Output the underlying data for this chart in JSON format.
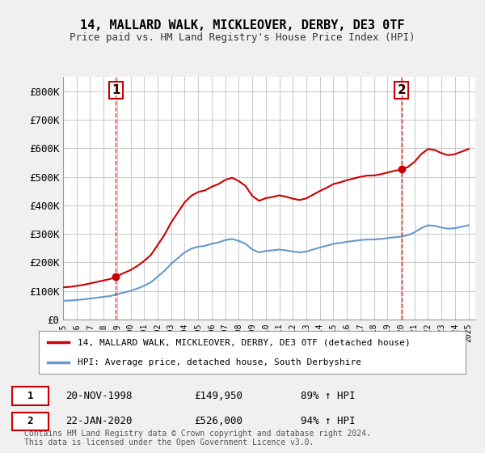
{
  "title": "14, MALLARD WALK, MICKLEOVER, DERBY, DE3 0TF",
  "subtitle": "Price paid vs. HM Land Registry's House Price Index (HPI)",
  "ylim": [
    0,
    850000
  ],
  "yticks": [
    0,
    100000,
    200000,
    300000,
    400000,
    500000,
    600000,
    700000,
    800000
  ],
  "ytick_labels": [
    "£0",
    "£100K",
    "£200K",
    "£300K",
    "£400K",
    "£500K",
    "£600K",
    "£700K",
    "£800K"
  ],
  "bg_color": "#f0f0f0",
  "plot_bg_color": "#ffffff",
  "grid_color": "#cccccc",
  "red_color": "#cc0000",
  "blue_color": "#6699cc",
  "sale1_year": 1998.9,
  "sale1_price": 149950,
  "sale1_label": "1",
  "sale2_year": 2020.05,
  "sale2_price": 526000,
  "sale2_label": "2",
  "legend_line1": "14, MALLARD WALK, MICKLEOVER, DERBY, DE3 0TF (detached house)",
  "legend_line2": "HPI: Average price, detached house, South Derbyshire",
  "table_row1": [
    "1",
    "20-NOV-1998",
    "£149,950",
    "89% ↑ HPI"
  ],
  "table_row2": [
    "2",
    "22-JAN-2020",
    "£526,000",
    "94% ↑ HPI"
  ],
  "footnote": "Contains HM Land Registry data © Crown copyright and database right 2024.\nThis data is licensed under the Open Government Licence v3.0.",
  "xmin": 1995.0,
  "xmax": 2025.5
}
